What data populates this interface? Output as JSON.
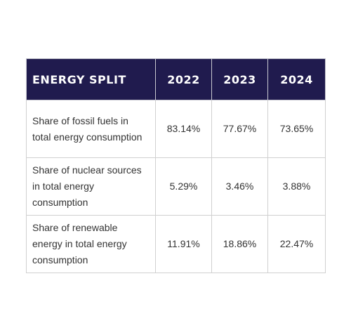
{
  "chart_data": {
    "type": "table",
    "columns": [
      "ENERGY SPLIT",
      "2022",
      "2023",
      "2024"
    ],
    "rows": [
      {
        "label": "Share of fossil fuels in total energy consumption",
        "values": [
          "83.14%",
          "77.67%",
          "73.65%"
        ]
      },
      {
        "label": "Share of nuclear sources in total energy consumption",
        "values": [
          "5.29%",
          "3.46%",
          "3.88%"
        ]
      },
      {
        "label": "Share of renewable energy in total energy consumption",
        "values": [
          "11.91%",
          "18.86%",
          "22.47%"
        ]
      }
    ]
  },
  "colors": {
    "header_background": "#201b4e",
    "header_text": "#ffffff",
    "body_text": "#333333",
    "border": "#d0d0d0"
  }
}
